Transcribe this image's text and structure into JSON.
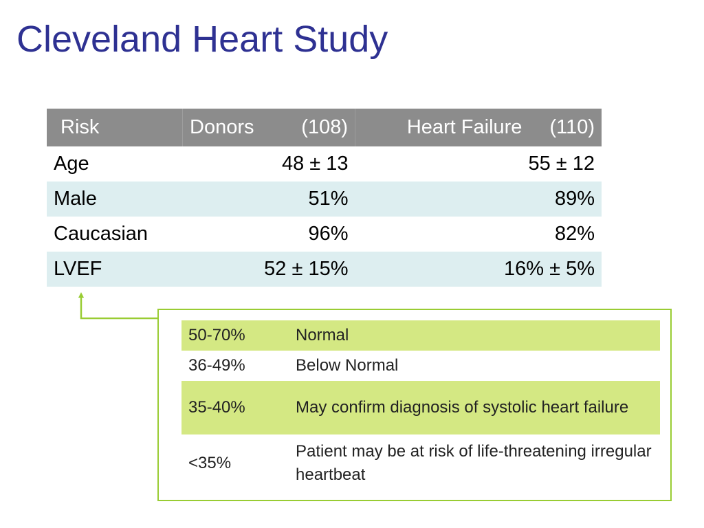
{
  "title": "Cleveland Heart Study",
  "table": {
    "headers": {
      "risk": "Risk",
      "donors": "Donors",
      "donors_n": "(108)",
      "hf": "Heart Failure",
      "hf_n": "(110)"
    },
    "rows": [
      {
        "label": "Age",
        "donors": "48 ± 13",
        "hf": "55 ± 12"
      },
      {
        "label": "Male",
        "donors": "51%",
        "hf": "89%"
      },
      {
        "label": "Caucasian",
        "donors": "96%",
        "hf": "82%"
      },
      {
        "label": "LVEF",
        "donors": "52 ± 15%",
        "hf": "16% ± 5%"
      }
    ]
  },
  "lvef_reference": [
    {
      "range": "50-70%",
      "meaning": "Normal"
    },
    {
      "range": "36-49%",
      "meaning": "Below Normal"
    },
    {
      "range": "35-40%",
      "meaning": "May confirm diagnosis of systolic heart failure"
    },
    {
      "range": "<35%",
      "meaning": "Patient may be at risk of life-threatening irregular heartbeat"
    }
  ],
  "colors": {
    "title": "#2e3192",
    "header_bg": "#8c8c8c",
    "row_alt_bg": "#ddeef0",
    "accent_green": "#99cc33",
    "highlight_green": "#d4e883"
  }
}
